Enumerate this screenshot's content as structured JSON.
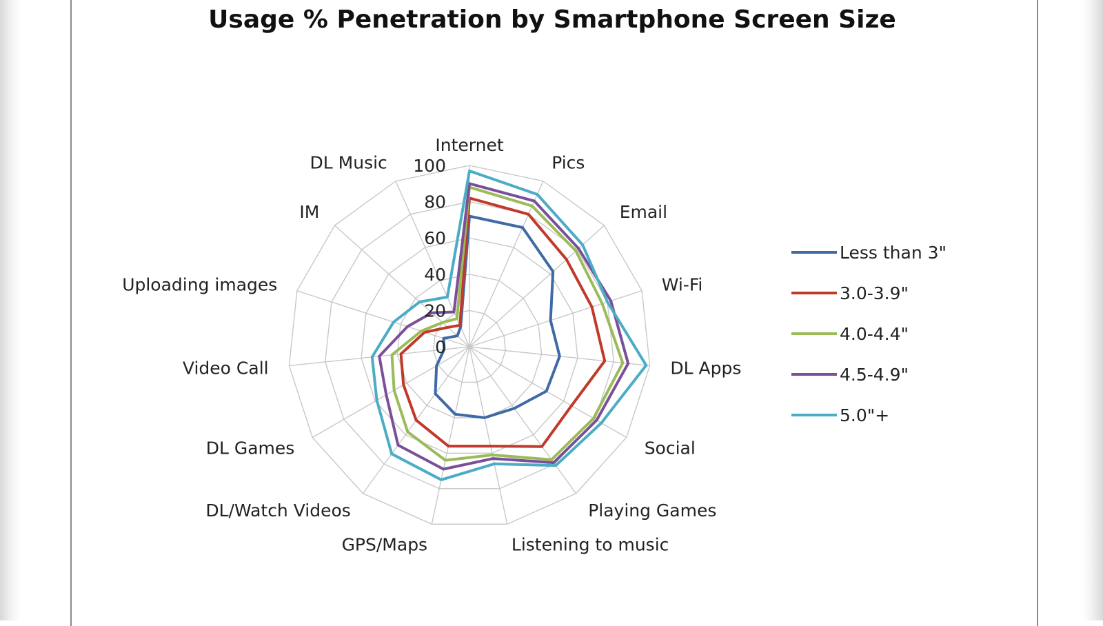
{
  "chart_data": {
    "type": "radar",
    "title": "Usage % Penetration by Smartphone Screen Size",
    "categories": [
      "Internet",
      "Pics",
      "Email",
      "Wi-Fi",
      "DL Apps",
      "Social",
      "Playing Games",
      "Listening to music",
      "GPS/Maps",
      "DL/Watch Videos",
      "DL Games",
      "Video Call",
      "Uploading images",
      "IM",
      "DL Music"
    ],
    "r_ticks": [
      "0",
      "20",
      "40",
      "60",
      "80",
      "100"
    ],
    "rlim": [
      0,
      100
    ],
    "grid": true,
    "legend_position": "right",
    "series": [
      {
        "name": "Less than 3\"",
        "color": "#3f6aa5",
        "values": [
          72,
          72,
          62,
          47,
          50,
          49,
          42,
          40,
          38,
          32,
          21,
          14,
          15,
          9,
          12
        ]
      },
      {
        "name": "3.0-3.9\"",
        "color": "#c0392b",
        "values": [
          82,
          80,
          72,
          71,
          75,
          65,
          68,
          56,
          56,
          50,
          42,
          38,
          26,
          16,
          13
        ]
      },
      {
        "name": "4.0-4.4\"",
        "color": "#9bbb59",
        "values": [
          88,
          85,
          79,
          77,
          85,
          79,
          77,
          61,
          64,
          58,
          48,
          43,
          28,
          20,
          17
        ]
      },
      {
        "name": "4.5-4.9\"",
        "color": "#7a4f9a",
        "values": [
          90,
          88,
          81,
          82,
          88,
          81,
          79,
          63,
          69,
          67,
          53,
          50,
          36,
          28,
          21
        ]
      },
      {
        "name": "5.0\"+",
        "color": "#4bacc6",
        "values": [
          97,
          92,
          84,
          80,
          98,
          84,
          81,
          66,
          75,
          73,
          59,
          54,
          44,
          37,
          30
        ]
      }
    ]
  }
}
